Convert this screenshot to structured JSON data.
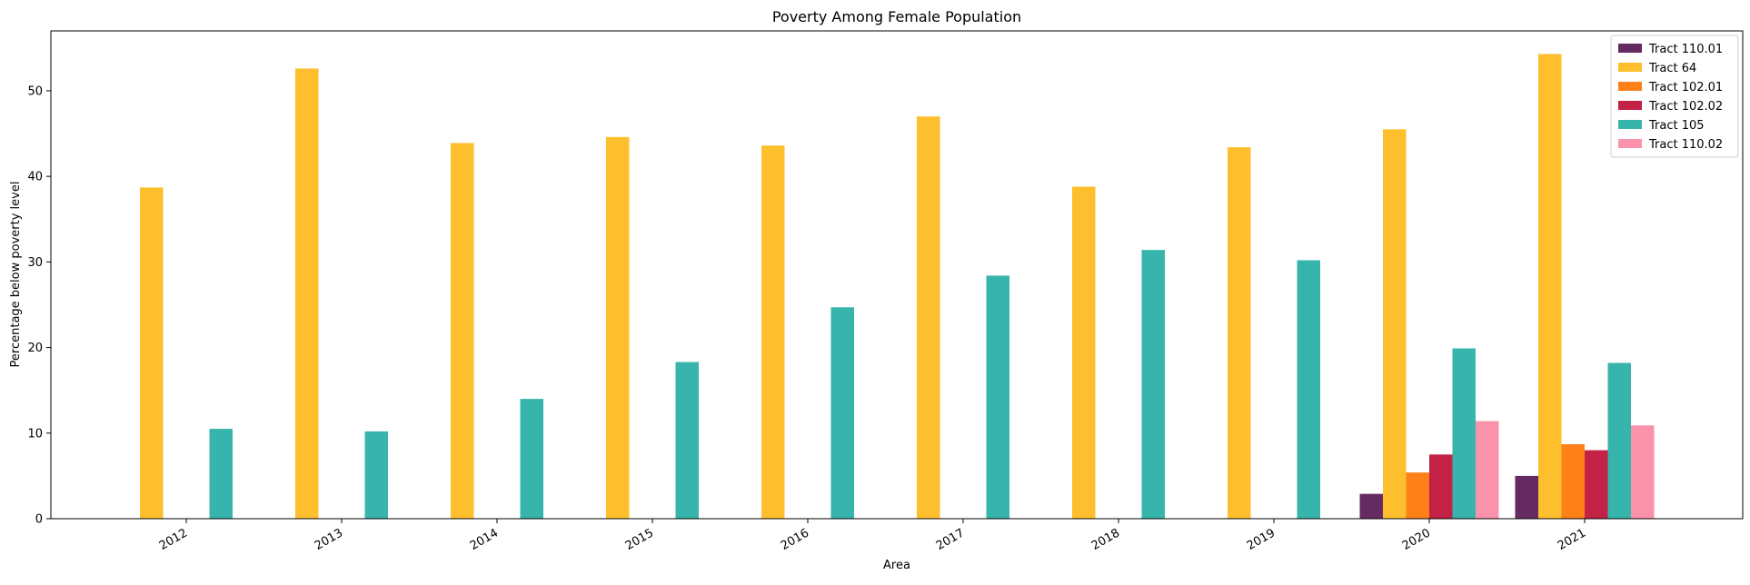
{
  "chart_data": {
    "type": "bar",
    "title": "Poverty Among Female Population",
    "xlabel": "Area",
    "ylabel": "Percentage below poverty level",
    "categories": [
      "2012",
      "2013",
      "2014",
      "2015",
      "2016",
      "2017",
      "2018",
      "2019",
      "2020",
      "2021"
    ],
    "ylim": [
      0,
      57
    ],
    "yticks": [
      0,
      10,
      20,
      30,
      40,
      50
    ],
    "grid": false,
    "legend_position": "top-right",
    "series": [
      {
        "name": "Tract 110.01",
        "color": "#662a63",
        "values": [
          null,
          null,
          null,
          null,
          null,
          null,
          null,
          null,
          2.9,
          5.0
        ]
      },
      {
        "name": "Tract 64",
        "color": "#fdbf2d",
        "values": [
          38.7,
          52.6,
          43.9,
          44.6,
          43.6,
          47.0,
          38.8,
          43.4,
          45.5,
          54.3
        ]
      },
      {
        "name": "Tract 102.01",
        "color": "#fd8118",
        "values": [
          null,
          null,
          null,
          null,
          null,
          null,
          null,
          null,
          5.4,
          8.7
        ]
      },
      {
        "name": "Tract 102.02",
        "color": "#c42147",
        "values": [
          null,
          null,
          null,
          null,
          null,
          null,
          null,
          null,
          7.5,
          8.0
        ]
      },
      {
        "name": "Tract 105",
        "color": "#37b5ac",
        "values": [
          10.5,
          10.2,
          14.0,
          18.3,
          24.7,
          28.4,
          31.4,
          30.2,
          19.9,
          18.2
        ]
      },
      {
        "name": "Tract 110.02",
        "color": "#fb92ac",
        "values": [
          null,
          null,
          null,
          null,
          null,
          null,
          null,
          null,
          11.4,
          10.9
        ]
      }
    ]
  }
}
